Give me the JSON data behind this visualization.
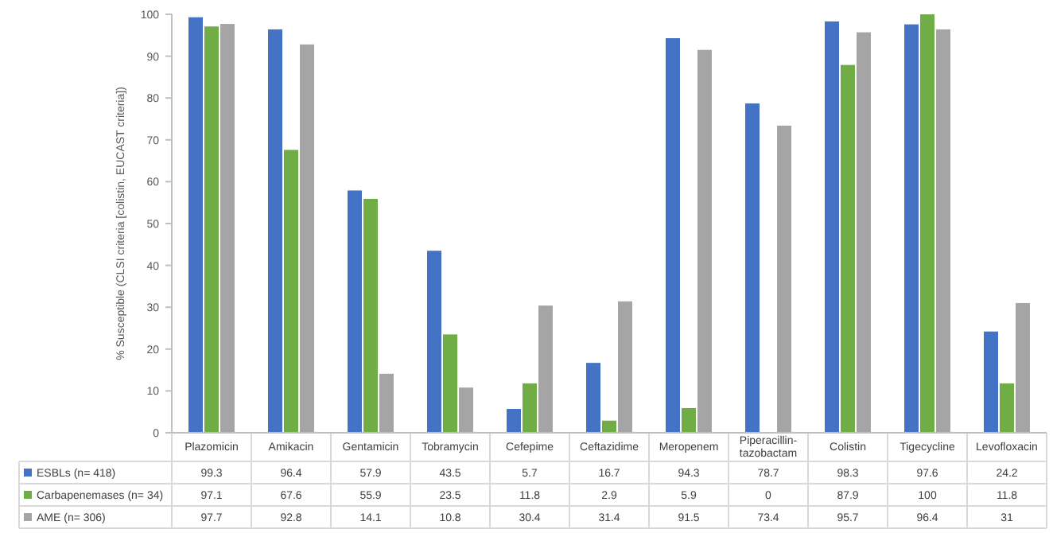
{
  "chart_data": {
    "type": "bar",
    "ylabel": "% Susceptible (CLSI criteria [colistin, EUCAST criteria])",
    "categories": [
      "Plazomicin",
      "Amikacin",
      "Gentamicin",
      "Tobramycin",
      "Cefepime",
      "Ceftazidime",
      "Meropenem",
      "Piperacillin-tazobactam",
      "Colistin",
      "Tigecycline",
      "Levofloxacin"
    ],
    "series": [
      {
        "name": "ESBLs (n= 418)",
        "color": "#4472c4",
        "values": [
          99.3,
          96.4,
          57.9,
          43.5,
          5.7,
          16.7,
          94.3,
          78.7,
          98.3,
          97.6,
          24.2
        ]
      },
      {
        "name": "Carbapenemases (n= 34)",
        "color": "#70ad47",
        "values": [
          97.1,
          67.6,
          55.9,
          23.5,
          11.8,
          2.9,
          5.9,
          0,
          87.9,
          100,
          11.8
        ]
      },
      {
        "name": "AME (n= 306)",
        "color": "#a5a5a5",
        "values": [
          97.7,
          92.8,
          14.1,
          10.8,
          30.4,
          31.4,
          91.5,
          73.4,
          95.7,
          96.4,
          31
        ]
      }
    ],
    "ylim": [
      0,
      100
    ],
    "yticks": [
      0,
      10,
      20,
      30,
      40,
      50,
      60,
      70,
      80,
      90,
      100
    ],
    "grid": false,
    "legend": "bottom",
    "data_labels": true
  }
}
